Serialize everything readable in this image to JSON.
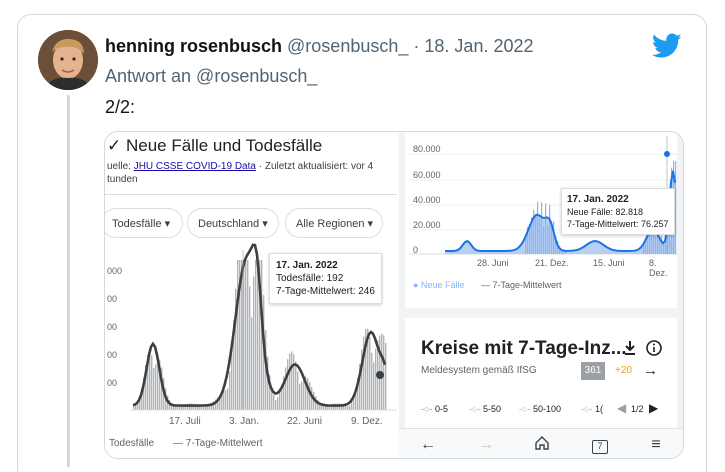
{
  "tweet": {
    "author_name": "henning rosenbusch",
    "author_handle": "@rosenbusch_",
    "separator": "·",
    "date": "18. Jan. 2022",
    "reply_to": "Antwort an @rosenbusch_",
    "text": "2/2:"
  },
  "left_panel": {
    "title": "✓ Neue Fälle und Todesfälle",
    "source_prefix": "uelle: ",
    "source_link": "JHU CSSE COVID-19 Data",
    "source_suffix": " · Zuletzt aktualisiert: vor 4",
    "source_line2": "tunden",
    "filters": [
      "Todesfälle ▾",
      "Deutschland ▾",
      "Alle Regionen ▾"
    ],
    "tooltip": {
      "date": "17. Jan. 2022",
      "line1": "Todesfälle: 192",
      "line2": "7-Tage-Mittelwert: 246"
    },
    "y_ticks": [
      "000",
      "00",
      "00",
      "00",
      "00"
    ],
    "x_ticks": [
      "17. Juli",
      "3. Jan.",
      "22. Juni",
      "9. Dez."
    ],
    "legend": [
      "Todesfälle",
      "— 7-Tage-Mittelwert"
    ]
  },
  "right_panel": {
    "y_ticks": [
      "80.000",
      "60.000",
      "40.000",
      "20.000",
      "0"
    ],
    "x_ticks": [
      "28. Juni",
      "21. Dez.",
      "15. Juni",
      "8. Dez."
    ],
    "tooltip": {
      "date": "17. Jan. 2022",
      "line1": "Neue Fälle: 82.818",
      "line2": "7-Tage-Mittelwert: 76.257"
    },
    "legend": [
      "● Neue Fälle",
      "— 7-Tage-Mittelwert"
    ],
    "card": {
      "title": "Kreise mit 7-Tage-Inz...",
      "subtitle": "Meldesystem gemäß IfSG",
      "badge": "361",
      "delta": "+20",
      "scale": [
        "0-5",
        "5-50",
        "50-100",
        "1("
      ],
      "pager": "1/2"
    },
    "nav": {
      "tabs_count": "7"
    }
  },
  "colors": {
    "twitter_blue": "#1d9bf0",
    "bar_gray": "#b0b4b8",
    "line_dark": "#3c4043",
    "area_blue": "#aac8f2",
    "line_blue": "#1a73e8"
  }
}
